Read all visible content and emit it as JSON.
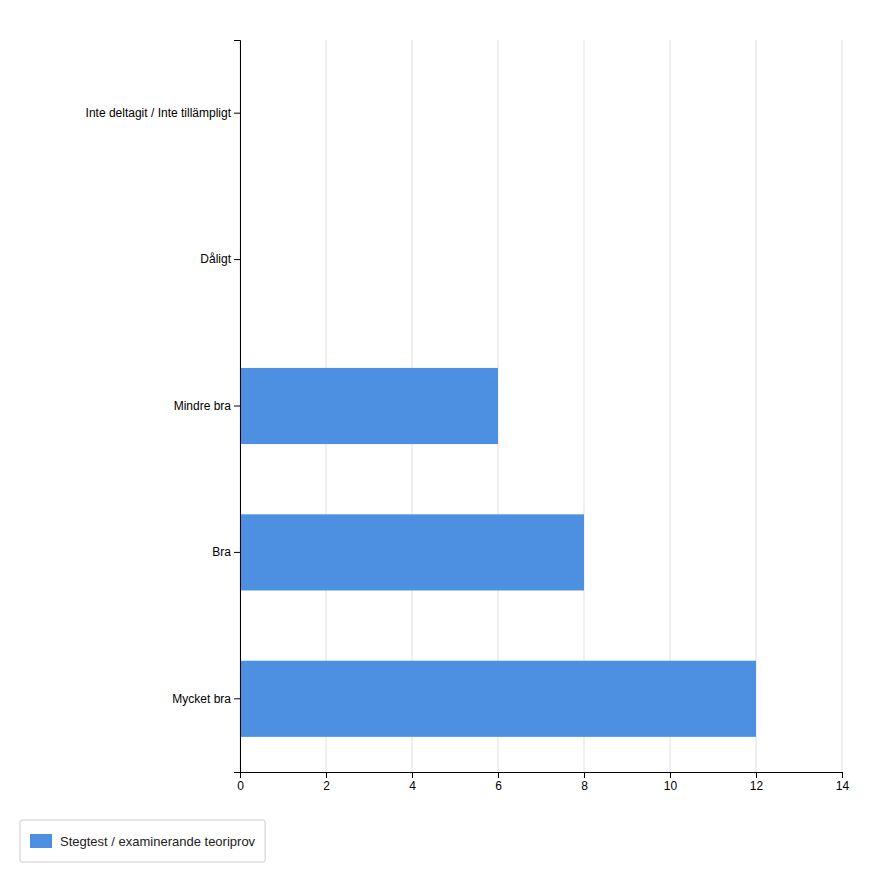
{
  "chart_data": {
    "type": "bar",
    "orientation": "horizontal",
    "categories": [
      "Mycket bra",
      "Bra",
      "Mindre bra",
      "Dåligt",
      "Inte deltagit / Inte tillämpligt"
    ],
    "series": [
      {
        "name": "Stegtest / examinerande teoriprov",
        "color": "#4d8fe0",
        "values": [
          12,
          8,
          6,
          0,
          0
        ]
      }
    ],
    "xlim": [
      0,
      14
    ],
    "xticks": [
      0,
      2,
      4,
      6,
      8,
      10,
      12,
      14
    ],
    "grid": true,
    "legend": "bottom-left"
  }
}
